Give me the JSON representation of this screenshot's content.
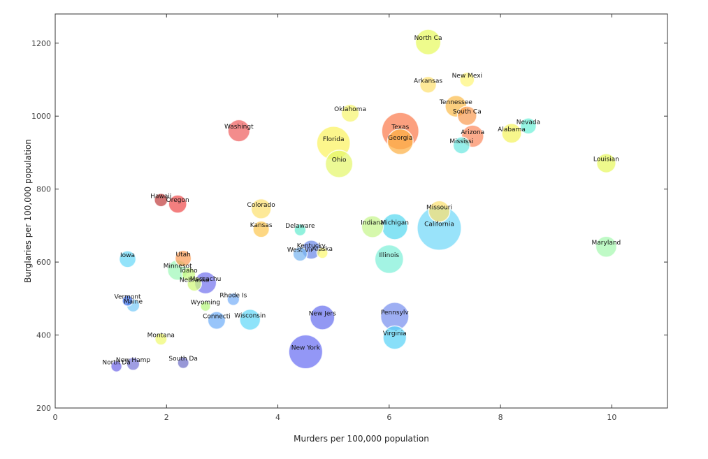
{
  "chart_data": {
    "type": "scatter",
    "xlabel": "Murders per 100,000 population",
    "ylabel": "Burglaries per 100,000 population",
    "xlim": [
      0,
      11
    ],
    "ylim": [
      200,
      1280
    ],
    "xticks": [
      0,
      2,
      4,
      6,
      8,
      10
    ],
    "yticks": [
      200,
      400,
      600,
      800,
      1000,
      1200
    ],
    "grid": false,
    "points": [
      {
        "label": "North Ca",
        "x": 6.7,
        "y": 1203,
        "size": 9.5,
        "color": "#e8fa60"
      },
      {
        "label": "Arkansas",
        "x": 6.7,
        "y": 1086,
        "size": 2.9,
        "color": "#fde170"
      },
      {
        "label": "New Mexi",
        "x": 7.4,
        "y": 1100,
        "size": 2.0,
        "color": "#fdf57a"
      },
      {
        "label": "Oklahoma",
        "x": 5.3,
        "y": 1008,
        "size": 3.6,
        "color": "#f7f570"
      },
      {
        "label": "Tennessee",
        "x": 7.2,
        "y": 1027,
        "size": 6.2,
        "color": "#fbbd4e"
      },
      {
        "label": "South Ca",
        "x": 7.4,
        "y": 1001,
        "size": 4.5,
        "color": "#fa9c55"
      },
      {
        "label": "Washingt",
        "x": 3.3,
        "y": 960,
        "size": 6.5,
        "color": "#ee6060"
      },
      {
        "label": "Texas",
        "x": 6.2,
        "y": 959,
        "size": 24,
        "color": "#fb7c4e"
      },
      {
        "label": "Georgia",
        "x": 6.2,
        "y": 930,
        "size": 9.7,
        "color": "#fcb045"
      },
      {
        "label": "Florida",
        "x": 5.0,
        "y": 926,
        "size": 18.8,
        "color": "#fbf25f"
      },
      {
        "label": "Arizona",
        "x": 7.5,
        "y": 945,
        "size": 6.6,
        "color": "#fb8a60"
      },
      {
        "label": "Alabama",
        "x": 8.2,
        "y": 953,
        "size": 4.8,
        "color": "#f4f260"
      },
      {
        "label": "Nevada",
        "x": 8.5,
        "y": 973,
        "size": 2.6,
        "color": "#6ef0d8"
      },
      {
        "label": "Mississi",
        "x": 7.3,
        "y": 920,
        "size": 3.0,
        "color": "#6ee8e0"
      },
      {
        "label": "Ohio",
        "x": 5.1,
        "y": 869,
        "size": 11.5,
        "color": "#e5f66c"
      },
      {
        "label": "Louisian",
        "x": 9.9,
        "y": 871,
        "size": 4.5,
        "color": "#e8f860"
      },
      {
        "label": "Hawaii",
        "x": 1.9,
        "y": 770,
        "size": 1.4,
        "color": "#c04040"
      },
      {
        "label": "Oregon",
        "x": 2.2,
        "y": 759,
        "size": 3.8,
        "color": "#ef4d4d"
      },
      {
        "label": "Colorado",
        "x": 3.7,
        "y": 746,
        "size": 5.0,
        "color": "#fce070"
      },
      {
        "label": "Kansas",
        "x": 3.7,
        "y": 690,
        "size": 2.8,
        "color": "#fcc853"
      },
      {
        "label": "Delaware",
        "x": 4.4,
        "y": 688,
        "size": 0.9,
        "color": "#66ecd0"
      },
      {
        "label": "Missouri",
        "x": 6.9,
        "y": 739,
        "size": 5.9,
        "color": "#fbe070"
      },
      {
        "label": "Indiana",
        "x": 5.7,
        "y": 697,
        "size": 6.4,
        "color": "#c6f58c"
      },
      {
        "label": "Michigan",
        "x": 6.1,
        "y": 697,
        "size": 10.0,
        "color": "#58d8f0"
      },
      {
        "label": "California",
        "x": 6.9,
        "y": 693,
        "size": 36,
        "color": "#72d8f8"
      },
      {
        "label": "Maryland",
        "x": 9.9,
        "y": 642,
        "size": 5.7,
        "color": "#a6f8b0"
      },
      {
        "label": "Kentucky",
        "x": 4.6,
        "y": 634,
        "size": 4.3,
        "color": "#6a88e8"
      },
      {
        "label": "West Vir",
        "x": 4.4,
        "y": 622,
        "size": 1.8,
        "color": "#7ab6f0"
      },
      {
        "label": "Alaska",
        "x": 4.8,
        "y": 625,
        "size": 0.7,
        "color": "#fcf870"
      },
      {
        "label": "Illinois",
        "x": 6.0,
        "y": 608,
        "size": 12.8,
        "color": "#7ff0d8"
      },
      {
        "label": "Iowa",
        "x": 1.3,
        "y": 608,
        "size": 3.0,
        "color": "#6ad8f8"
      },
      {
        "label": "Utah",
        "x": 2.3,
        "y": 610,
        "size": 2.7,
        "color": "#fb9c58"
      },
      {
        "label": "Minnesot",
        "x": 2.2,
        "y": 578,
        "size": 5.2,
        "color": "#a0f8b8"
      },
      {
        "label": "Idaho",
        "x": 2.4,
        "y": 566,
        "size": 1.5,
        "color": "#c8f880"
      },
      {
        "label": "Massachu",
        "x": 2.7,
        "y": 543,
        "size": 6.4,
        "color": "#7474ee"
      },
      {
        "label": "Nebraska",
        "x": 2.5,
        "y": 540,
        "size": 1.8,
        "color": "#d0f878"
      },
      {
        "label": "Rhode Is",
        "x": 3.2,
        "y": 498,
        "size": 1.1,
        "color": "#78b0f8"
      },
      {
        "label": "Vermont",
        "x": 1.3,
        "y": 494,
        "size": 0.6,
        "color": "#3d6ee8"
      },
      {
        "label": "Maine",
        "x": 1.4,
        "y": 481,
        "size": 1.3,
        "color": "#7acaf8"
      },
      {
        "label": "Wyoming",
        "x": 2.7,
        "y": 479,
        "size": 0.5,
        "color": "#b8f880"
      },
      {
        "label": "Connecti",
        "x": 2.9,
        "y": 440,
        "size": 3.5,
        "color": "#70aef8"
      },
      {
        "label": "Wisconsin",
        "x": 3.5,
        "y": 442,
        "size": 5.6,
        "color": "#62d8f8"
      },
      {
        "label": "New Jers",
        "x": 4.8,
        "y": 448,
        "size": 8.7,
        "color": "#6870ee"
      },
      {
        "label": "Pennsylv",
        "x": 6.1,
        "y": 451,
        "size": 12.4,
        "color": "#7890ef"
      },
      {
        "label": "Virginia",
        "x": 6.1,
        "y": 393,
        "size": 7.7,
        "color": "#5ad2f6"
      },
      {
        "label": "Montana",
        "x": 1.9,
        "y": 389,
        "size": 1.0,
        "color": "#f0fa70"
      },
      {
        "label": "New York",
        "x": 4.5,
        "y": 354,
        "size": 19.3,
        "color": "#6a6ff2"
      },
      {
        "label": "New Hamp",
        "x": 1.4,
        "y": 321,
        "size": 1.3,
        "color": "#7a78d8"
      },
      {
        "label": "North Da",
        "x": 1.1,
        "y": 314,
        "size": 0.7,
        "color": "#7068e8"
      },
      {
        "label": "South Da",
        "x": 2.3,
        "y": 324,
        "size": 0.8,
        "color": "#7070c8"
      }
    ]
  }
}
